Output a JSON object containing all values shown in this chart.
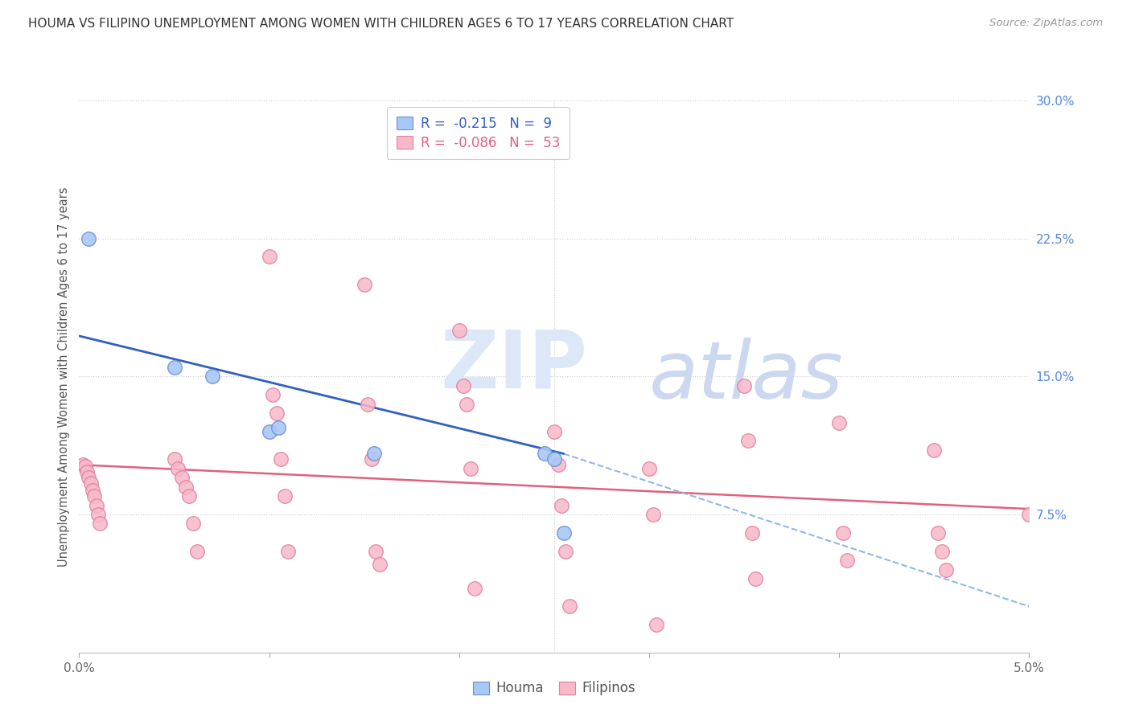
{
  "title": "HOUMA VS FILIPINO UNEMPLOYMENT AMONG WOMEN WITH CHILDREN AGES 6 TO 17 YEARS CORRELATION CHART",
  "source": "Source: ZipAtlas.com",
  "ylabel": "Unemployment Among Women with Children Ages 6 to 17 years",
  "xlim": [
    0.0,
    5.0
  ],
  "ylim": [
    0.0,
    30.0
  ],
  "houma_r": -0.215,
  "houma_n": 9,
  "filipino_r": -0.086,
  "filipino_n": 53,
  "houma_color": "#a8c8f8",
  "filipino_color": "#f8b8c8",
  "houma_edge_color": "#7090d0",
  "filipino_edge_color": "#e080a0",
  "houma_line_color": "#3060c0",
  "filipino_line_color": "#e06080",
  "dashed_line_color": "#90b8e8",
  "watermark_zip_color": "#dce8f8",
  "watermark_atlas_color": "#ccd8f0",
  "houma_x": [
    0.05,
    0.5,
    0.7,
    1.0,
    1.05,
    1.55,
    2.45,
    2.5,
    2.55
  ],
  "houma_y": [
    22.5,
    15.5,
    15.0,
    12.0,
    12.2,
    10.8,
    10.8,
    10.5,
    6.5
  ],
  "filipino_x": [
    0.02,
    0.03,
    0.04,
    0.05,
    0.06,
    0.07,
    0.08,
    0.09,
    0.1,
    0.11,
    0.5,
    0.52,
    0.54,
    0.56,
    0.58,
    0.6,
    0.62,
    1.0,
    1.02,
    1.04,
    1.06,
    1.08,
    1.1,
    1.5,
    1.52,
    1.54,
    1.56,
    1.58,
    2.0,
    2.02,
    2.04,
    2.06,
    2.08,
    2.5,
    2.52,
    2.54,
    2.56,
    2.58,
    3.0,
    3.02,
    3.04,
    3.5,
    3.52,
    3.54,
    3.56,
    4.0,
    4.02,
    4.04,
    4.5,
    4.52,
    4.54,
    4.56,
    5.0
  ],
  "filipino_y": [
    10.2,
    10.1,
    9.8,
    9.5,
    9.2,
    8.8,
    8.5,
    8.0,
    7.5,
    7.0,
    10.5,
    10.0,
    9.5,
    9.0,
    8.5,
    7.0,
    5.5,
    21.5,
    14.0,
    13.0,
    10.5,
    8.5,
    5.5,
    20.0,
    13.5,
    10.5,
    5.5,
    4.8,
    17.5,
    14.5,
    13.5,
    10.0,
    3.5,
    12.0,
    10.2,
    8.0,
    5.5,
    2.5,
    10.0,
    7.5,
    1.5,
    14.5,
    11.5,
    6.5,
    4.0,
    12.5,
    6.5,
    5.0,
    11.0,
    6.5,
    5.5,
    4.5,
    7.5
  ],
  "houma_line_x0": 0.0,
  "houma_line_y0": 17.2,
  "houma_line_x1": 2.55,
  "houma_line_y1": 10.8,
  "filipino_line_x0": 0.0,
  "filipino_line_y0": 10.2,
  "filipino_line_x1": 5.0,
  "filipino_line_y1": 7.8,
  "dashed_line_x0": 2.55,
  "dashed_line_y0": 10.8,
  "dashed_line_x1": 5.0,
  "dashed_line_y1": 2.5
}
